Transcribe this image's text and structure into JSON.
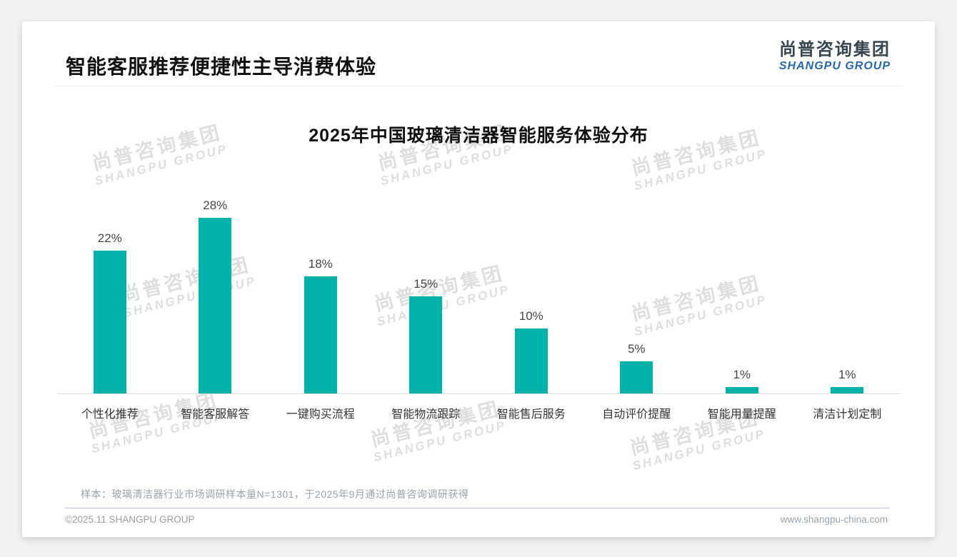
{
  "slide": {
    "title": "智能客服推荐便捷性主导消费体验"
  },
  "logo": {
    "cn": "尚普咨询集团",
    "en": "SHANGPU GROUP"
  },
  "watermark": {
    "cn": "尚普咨询集团",
    "en": "SHANGPU GROUP"
  },
  "chart_data": {
    "type": "bar",
    "title": "2025年中国玻璃清洁器智能服务体验分布",
    "categories": [
      "个性化推荐",
      "智能客服解答",
      "一键购买流程",
      "智能物流跟踪",
      "智能售后服务",
      "自动评价提醒",
      "智能用量提醒",
      "清洁计划定制"
    ],
    "values": [
      22,
      28,
      18,
      15,
      10,
      5,
      1,
      1
    ],
    "data_labels": [
      "22%",
      "28%",
      "18%",
      "15%",
      "10%",
      "5%",
      "1%",
      "1%"
    ],
    "xlabel": "",
    "ylabel": "",
    "ylim": [
      0,
      30
    ],
    "grid": false,
    "legend": false,
    "bar_color": "#00b2a9"
  },
  "footnote": "样本：玻璃清洁器行业市场调研样本量N=1301，于2025年9月通过尚普咨询调研获得",
  "footer": {
    "copyright": "©2025.11 SHANGPU GROUP",
    "url": "www.shangpu-china.com"
  }
}
